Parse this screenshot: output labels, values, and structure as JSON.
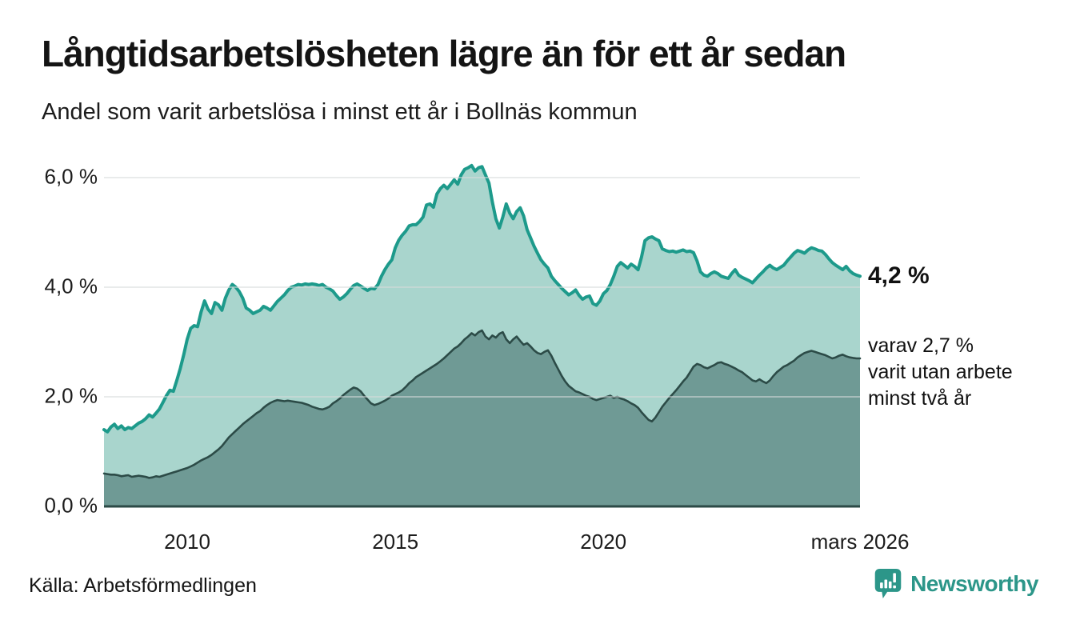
{
  "header": {
    "title": "Långtidsarbetslösheten lägre än för ett år sedan",
    "subtitle": "Andel som varit arbetslösa i minst ett år i Bollnäs kommun"
  },
  "footer": {
    "source": "Källa: Arbetsförmedlingen",
    "brand": "Newsworthy"
  },
  "colors": {
    "line_one_year": "#1d9a8b",
    "fill_one_year": "#a9d5cd",
    "line_two_year": "#2c4b47",
    "fill_two_year": "#6f9a95",
    "gridline": "#dcdcdc",
    "gridline_overlay": "rgba(215,219,218,0.55)",
    "axis_line": "#2c4b47",
    "brand_teal": "#2c9689",
    "text": "#141414"
  },
  "chart_data": {
    "type": "area",
    "title": "Långtidsarbetslösheten lägre än för ett år sedan",
    "subtitle": "Andel som varit arbetslösa i minst ett år i Bollnäs kommun",
    "grid": true,
    "legend_position": "right-annotations",
    "x": {
      "start": 2008.0,
      "step": 0.083333,
      "count": 219,
      "unit": "year-month"
    },
    "x_axis": {
      "ticks": [
        {
          "label": "2010",
          "x": 2010.0
        },
        {
          "label": "2015",
          "x": 2015.0
        },
        {
          "label": "2020",
          "x": 2020.0
        },
        {
          "label": "mars 2026",
          "x": 2026.1667
        }
      ],
      "range": [
        2008.0,
        2026.1667
      ]
    },
    "y_axis": {
      "ticks": [
        {
          "label": "0,0 %",
          "value": 0
        },
        {
          "label": "2,0 %",
          "value": 2
        },
        {
          "label": "4,0 %",
          "value": 4
        },
        {
          "label": "6,0 %",
          "value": 6
        }
      ],
      "range": [
        0,
        6.5
      ],
      "unit": "%"
    },
    "series": [
      {
        "name": "Andel som varit arbetslösa i minst ett år",
        "latest_value": 4.2,
        "values": [
          1.4,
          1.36,
          1.45,
          1.5,
          1.42,
          1.47,
          1.4,
          1.44,
          1.42,
          1.47,
          1.52,
          1.55,
          1.6,
          1.67,
          1.63,
          1.7,
          1.78,
          1.9,
          2.02,
          2.12,
          2.1,
          2.3,
          2.52,
          2.77,
          3.05,
          3.25,
          3.3,
          3.28,
          3.55,
          3.75,
          3.6,
          3.52,
          3.72,
          3.68,
          3.58,
          3.8,
          3.95,
          4.05,
          4.0,
          3.92,
          3.8,
          3.62,
          3.58,
          3.52,
          3.55,
          3.58,
          3.65,
          3.62,
          3.58,
          3.66,
          3.74,
          3.8,
          3.86,
          3.94,
          4.0,
          4.02,
          4.05,
          4.04,
          4.06,
          4.05,
          4.06,
          4.05,
          4.03,
          4.05,
          4.0,
          3.97,
          3.93,
          3.85,
          3.78,
          3.82,
          3.88,
          3.96,
          4.03,
          4.06,
          4.02,
          3.98,
          3.94,
          3.98,
          3.97,
          4.05,
          4.2,
          4.32,
          4.42,
          4.5,
          4.72,
          4.86,
          4.95,
          5.02,
          5.12,
          5.14,
          5.14,
          5.2,
          5.28,
          5.5,
          5.52,
          5.46,
          5.7,
          5.8,
          5.86,
          5.8,
          5.88,
          5.96,
          5.88,
          6.05,
          6.15,
          6.18,
          6.22,
          6.12,
          6.18,
          6.2,
          6.05,
          5.9,
          5.55,
          5.25,
          5.08,
          5.28,
          5.52,
          5.35,
          5.25,
          5.38,
          5.45,
          5.3,
          5.05,
          4.9,
          4.75,
          4.62,
          4.5,
          4.42,
          4.35,
          4.2,
          4.12,
          4.05,
          3.98,
          3.92,
          3.86,
          3.9,
          3.95,
          3.85,
          3.78,
          3.82,
          3.84,
          3.7,
          3.67,
          3.75,
          3.88,
          3.94,
          4.05,
          4.2,
          4.38,
          4.45,
          4.4,
          4.35,
          4.42,
          4.38,
          4.32,
          4.55,
          4.85,
          4.9,
          4.92,
          4.88,
          4.85,
          4.7,
          4.67,
          4.65,
          4.66,
          4.64,
          4.66,
          4.68,
          4.65,
          4.66,
          4.63,
          4.48,
          4.28,
          4.22,
          4.2,
          4.25,
          4.28,
          4.25,
          4.2,
          4.18,
          4.16,
          4.25,
          4.32,
          4.22,
          4.18,
          4.15,
          4.12,
          4.08,
          4.15,
          4.22,
          4.28,
          4.35,
          4.4,
          4.35,
          4.32,
          4.36,
          4.4,
          4.48,
          4.55,
          4.62,
          4.67,
          4.65,
          4.62,
          4.68,
          4.72,
          4.7,
          4.67,
          4.66,
          4.6,
          4.52,
          4.45,
          4.4,
          4.36,
          4.32,
          4.38,
          4.3,
          4.25,
          4.22,
          4.2
        ]
      },
      {
        "name": "varav utan arbete minst två år",
        "latest_value": 2.7,
        "values": [
          0.6,
          0.59,
          0.58,
          0.58,
          0.57,
          0.55,
          0.56,
          0.57,
          0.54,
          0.55,
          0.56,
          0.55,
          0.54,
          0.52,
          0.53,
          0.55,
          0.54,
          0.56,
          0.58,
          0.6,
          0.62,
          0.64,
          0.66,
          0.68,
          0.7,
          0.73,
          0.76,
          0.8,
          0.84,
          0.87,
          0.9,
          0.94,
          0.99,
          1.04,
          1.1,
          1.18,
          1.26,
          1.32,
          1.38,
          1.44,
          1.5,
          1.55,
          1.6,
          1.65,
          1.7,
          1.74,
          1.8,
          1.85,
          1.89,
          1.92,
          1.94,
          1.93,
          1.92,
          1.93,
          1.92,
          1.91,
          1.9,
          1.89,
          1.87,
          1.85,
          1.82,
          1.8,
          1.78,
          1.77,
          1.79,
          1.82,
          1.88,
          1.92,
          1.97,
          2.03,
          2.08,
          2.13,
          2.17,
          2.15,
          2.1,
          2.02,
          1.95,
          1.88,
          1.85,
          1.87,
          1.9,
          1.93,
          1.97,
          2.02,
          2.05,
          2.08,
          2.12,
          2.18,
          2.25,
          2.3,
          2.36,
          2.4,
          2.44,
          2.48,
          2.52,
          2.56,
          2.6,
          2.65,
          2.7,
          2.76,
          2.82,
          2.88,
          2.92,
          2.98,
          3.05,
          3.1,
          3.16,
          3.12,
          3.18,
          3.21,
          3.1,
          3.05,
          3.12,
          3.08,
          3.15,
          3.18,
          3.05,
          2.98,
          3.05,
          3.1,
          3.02,
          2.95,
          2.98,
          2.92,
          2.85,
          2.8,
          2.78,
          2.82,
          2.85,
          2.75,
          2.62,
          2.5,
          2.38,
          2.28,
          2.2,
          2.15,
          2.1,
          2.08,
          2.05,
          2.02,
          2.0,
          1.96,
          1.94,
          1.96,
          1.98,
          2.0,
          2.02,
          1.98,
          2.0,
          1.97,
          1.95,
          1.92,
          1.88,
          1.85,
          1.8,
          1.72,
          1.65,
          1.58,
          1.55,
          1.62,
          1.72,
          1.82,
          1.9,
          1.98,
          2.05,
          2.12,
          2.2,
          2.28,
          2.35,
          2.45,
          2.55,
          2.6,
          2.58,
          2.54,
          2.52,
          2.55,
          2.58,
          2.62,
          2.63,
          2.6,
          2.58,
          2.55,
          2.52,
          2.48,
          2.45,
          2.4,
          2.35,
          2.3,
          2.28,
          2.32,
          2.28,
          2.25,
          2.3,
          2.38,
          2.45,
          2.5,
          2.55,
          2.58,
          2.62,
          2.66,
          2.72,
          2.76,
          2.8,
          2.82,
          2.84,
          2.82,
          2.8,
          2.78,
          2.76,
          2.73,
          2.7,
          2.72,
          2.75,
          2.77,
          2.74,
          2.72,
          2.71,
          2.7,
          2.7
        ]
      }
    ],
    "annotations": {
      "latest": {
        "text": "4,2 %",
        "value": 4.2
      },
      "secondary": {
        "line1": "varav 2,7 %",
        "line2": "varit utan arbete",
        "line3": "minst två år",
        "value": 2.7
      }
    }
  }
}
